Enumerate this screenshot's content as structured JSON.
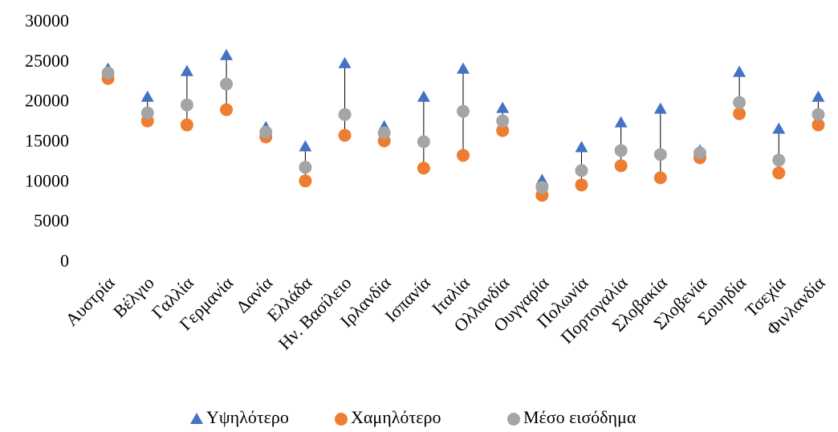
{
  "chart_data": {
    "type": "stock",
    "categories": [
      "Αυστρία",
      "Βέλγιο",
      "Γαλλία",
      "Γερμανία",
      "Δανία",
      "Ελλάδα",
      "Ην. Βασίλειο",
      "Ιρλανδία",
      "Ισπανία",
      "Ιταλία",
      "Ολλανδία",
      "Ουγγαρία",
      "Πολωνία",
      "Πορτογαλία",
      "Σλοβακία",
      "Σλοβενία",
      "Σουηδία",
      "Τσεχία",
      "Φινλανδία"
    ],
    "series": [
      {
        "name": "Υψηλότερο",
        "color": "#4472c4",
        "marker": "triangle",
        "values": [
          24200,
          20700,
          23900,
          25900,
          16900,
          14500,
          24900,
          17000,
          20700,
          24200,
          19300,
          10300,
          14400,
          17500,
          19200,
          14000,
          23800,
          16700,
          20700
        ]
      },
      {
        "name": "Χαμηλότερο",
        "color": "#ed7d31",
        "marker": "circle",
        "values": [
          23000,
          17700,
          17200,
          19100,
          15700,
          10200,
          15900,
          15200,
          11800,
          13400,
          16500,
          8400,
          9700,
          12100,
          10600,
          13100,
          18600,
          11200,
          17200
        ]
      },
      {
        "name": "Μέσο εισόδημα",
        "color": "#a5a5a5",
        "marker": "circle",
        "values": [
          23700,
          18700,
          19700,
          22300,
          16300,
          11900,
          18500,
          16200,
          15100,
          18900,
          17700,
          9400,
          11500,
          14000,
          13500,
          13700,
          20000,
          12800,
          18500
        ]
      }
    ],
    "ylim": [
      0,
      30000
    ],
    "yticks": [
      0,
      5000,
      10000,
      15000,
      20000,
      25000,
      30000
    ],
    "grid": false,
    "legend": "bottom"
  }
}
